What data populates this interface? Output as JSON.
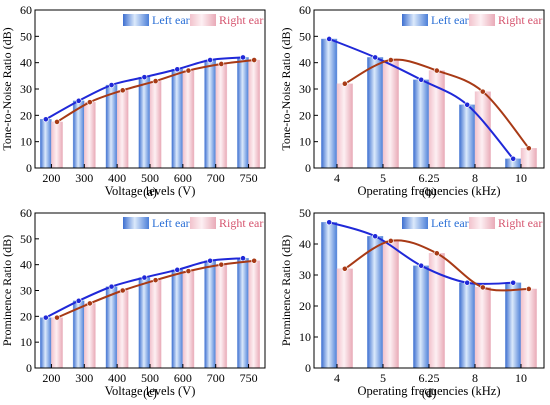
{
  "chart_data": [
    {
      "panel": "(a)",
      "type": "bar",
      "xlabel": "Voltage levels (V)",
      "ylabel": "Tone-to-Noise Ratio (dB)",
      "categories": [
        "200",
        "300",
        "400",
        "500",
        "600",
        "700",
        "750"
      ],
      "ylim": [
        0,
        60
      ],
      "yticks": [
        0,
        10,
        20,
        30,
        40,
        50,
        60
      ],
      "legend": "top-right",
      "grid": false,
      "series": [
        {
          "name": "Left ear",
          "values": [
            18.5,
            25.5,
            31.5,
            34.5,
            37.5,
            41,
            42
          ],
          "line": [
            18.5,
            25.5,
            31.5,
            34.5,
            37.5,
            41,
            42
          ]
        },
        {
          "name": "Right ear",
          "values": [
            17.5,
            25,
            29.5,
            33,
            37,
            39.5,
            41
          ],
          "line": [
            17.5,
            25,
            29.5,
            33,
            37,
            39.5,
            41
          ]
        }
      ],
      "annotations": []
    },
    {
      "panel": "(b)",
      "type": "bar",
      "xlabel": "Operating frequencies (kHz)",
      "ylabel": "Tone-to-Noise Ratio (dB)",
      "categories": [
        "4",
        "5",
        "6.25",
        "8",
        "10"
      ],
      "ylim": [
        0,
        60
      ],
      "yticks": [
        0,
        10,
        20,
        30,
        40,
        50,
        60
      ],
      "legend": "top-right",
      "grid": false,
      "series": [
        {
          "name": "Left ear",
          "values": [
            49,
            42,
            33.5,
            24,
            3.5
          ],
          "line": [
            49,
            42,
            33.5,
            24,
            3.5
          ]
        },
        {
          "name": "Right ear",
          "values": [
            32,
            41,
            37,
            29,
            7.5
          ],
          "line": [
            32,
            41,
            37,
            29,
            7.5
          ]
        }
      ]
    },
    {
      "panel": "(c)",
      "type": "bar",
      "xlabel": "Voltage levels (V)",
      "ylabel": "Prominence Ratio (dB)",
      "categories": [
        "200",
        "300",
        "400",
        "500",
        "600",
        "700",
        "750"
      ],
      "ylim": [
        0,
        60
      ],
      "yticks": [
        0,
        10,
        20,
        30,
        40,
        50,
        60
      ],
      "legend": "top-right",
      "grid": false,
      "series": [
        {
          "name": "Left ear",
          "values": [
            19.5,
            26,
            31.5,
            35,
            38,
            41.5,
            42.5
          ],
          "line": [
            19.5,
            26,
            31.5,
            35,
            38,
            41.5,
            42.5
          ]
        },
        {
          "name": "Right ear",
          "values": [
            19.5,
            25,
            30,
            34,
            37.5,
            40,
            41.5
          ],
          "line": [
            19.5,
            25,
            30,
            34,
            37.5,
            40,
            41.5
          ]
        }
      ]
    },
    {
      "panel": "(d)",
      "type": "bar",
      "xlabel": "Operating frequencies (kHz)",
      "ylabel": "Prominence Ratio (dB)",
      "categories": [
        "4",
        "5",
        "6.25",
        "8",
        "10"
      ],
      "ylim": [
        0,
        50
      ],
      "yticks": [
        0,
        10,
        20,
        30,
        40,
        50
      ],
      "legend": "top-right",
      "grid": false,
      "series": [
        {
          "name": "Left ear",
          "values": [
            47,
            42.5,
            33,
            27.5,
            27.5
          ],
          "line": [
            47,
            42.5,
            33,
            27.5,
            27.5
          ]
        },
        {
          "name": "Right ear",
          "values": [
            32,
            41,
            37,
            26,
            25.5
          ],
          "line": [
            32,
            41,
            37,
            26,
            25.5
          ]
        }
      ]
    }
  ],
  "colors": {
    "left_bar_dark": "#3d6fd0",
    "left_bar_light": "#dbe9fb",
    "right_bar_dark": "#e49aa8",
    "right_bar_light": "#fbe4ea",
    "left_line": "#1f28d8",
    "right_line": "#a83a16"
  }
}
